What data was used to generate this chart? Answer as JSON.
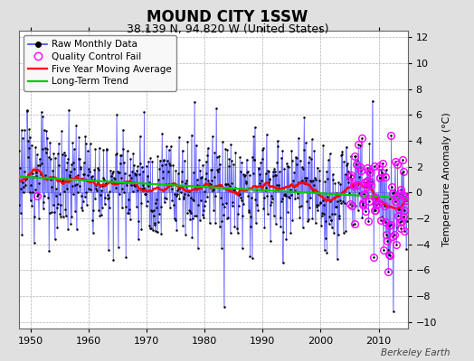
{
  "title": "MOUND CITY 1SSW",
  "subtitle": "38.139 N, 94.820 W (United States)",
  "ylabel": "Temperature Anomaly (°C)",
  "credit": "Berkeley Earth",
  "year_start": 1948.0,
  "year_end": 2015.0,
  "ylim": [
    -10.5,
    12.5
  ],
  "yticks": [
    -10,
    -8,
    -6,
    -4,
    -2,
    0,
    2,
    4,
    6,
    8,
    10,
    12
  ],
  "xticks": [
    1950,
    1960,
    1970,
    1980,
    1990,
    2000,
    2010
  ],
  "bg_color": "#e0e0e0",
  "plot_bg_color": "#ffffff",
  "grid_color": "#b0b0b0",
  "line_color_raw": "#4444ff",
  "dot_color_raw": "#000000",
  "ma_color": "#ff0000",
  "trend_color": "#00cc00",
  "qc_color": "#ff00ff",
  "legend_raw": "Raw Monthly Data",
  "legend_qc": "Quality Control Fail",
  "legend_ma": "Five Year Moving Average",
  "legend_trend": "Long-Term Trend",
  "title_fontsize": 12,
  "subtitle_fontsize": 9,
  "tick_fontsize": 8,
  "ylabel_fontsize": 8
}
